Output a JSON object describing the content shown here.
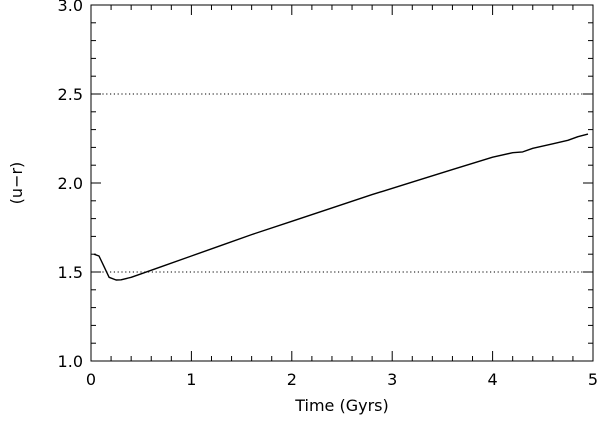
{
  "chart_data": {
    "type": "line",
    "title": "",
    "xlabel": "Time (Gyrs)",
    "ylabel": "(u−r)",
    "xlim": [
      0,
      5
    ],
    "ylim": [
      1.0,
      3.0
    ],
    "x_ticks": [
      0,
      1,
      2,
      3,
      4,
      5
    ],
    "x_tick_labels": [
      "0",
      "1",
      "2",
      "3",
      "4",
      "5"
    ],
    "y_ticks": [
      1.0,
      1.5,
      2.0,
      2.5,
      3.0
    ],
    "y_tick_labels": [
      "1.0",
      "1.5",
      "2.0",
      "2.5",
      "3.0"
    ],
    "x_minor_step": 0.2,
    "y_minor_step": 0.1,
    "grid": false,
    "reference_lines": [
      {
        "axis": "y",
        "value": 1.5,
        "style": "dotted"
      },
      {
        "axis": "y",
        "value": 2.5,
        "style": "dotted"
      }
    ],
    "series": [
      {
        "color": "#000000",
        "x": [
          0.03,
          0.08,
          0.13,
          0.18,
          0.25,
          0.3,
          0.4,
          0.5,
          0.7,
          1.0,
          1.3,
          1.6,
          2.0,
          2.4,
          2.8,
          3.2,
          3.6,
          4.0,
          4.2,
          4.3,
          4.4,
          4.6,
          4.75,
          4.85,
          4.95
        ],
        "y": [
          1.6,
          1.59,
          1.53,
          1.47,
          1.455,
          1.456,
          1.47,
          1.49,
          1.53,
          1.59,
          1.65,
          1.71,
          1.785,
          1.86,
          1.935,
          2.005,
          2.075,
          2.145,
          2.17,
          2.175,
          2.195,
          2.22,
          2.24,
          2.26,
          2.275
        ]
      }
    ]
  }
}
